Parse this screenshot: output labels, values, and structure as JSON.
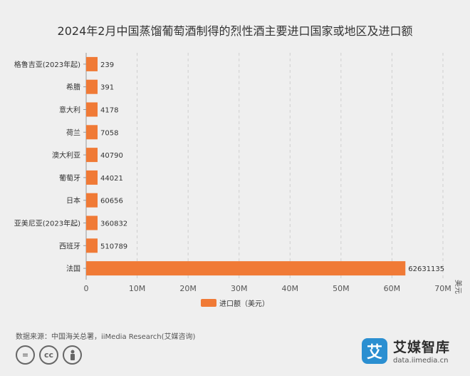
{
  "chart_data": {
    "type": "bar",
    "orientation": "horizontal",
    "title": "2024年2月中国蒸馏葡萄酒制得的烈性酒主要进口国家或地区及进口额",
    "unit_label": "美元",
    "categories": [
      "格鲁吉亚(2023年起)",
      "希腊",
      "意大利",
      "荷兰",
      "澳大利亚",
      "葡萄牙",
      "日本",
      "亚美尼亚(2023年起)",
      "西班牙",
      "法国"
    ],
    "series": [
      {
        "name": "进口额（美元）",
        "color": "#f07a36",
        "values": [
          239,
          391,
          4178,
          7058,
          40790,
          44021,
          60656,
          360832,
          510789,
          62631135
        ]
      }
    ],
    "x_ticks": [
      "0",
      "10M",
      "20M",
      "30M",
      "40M",
      "50M",
      "60M",
      "70M"
    ],
    "xlim": [
      0,
      70000000
    ],
    "grid": "vertical-dashed",
    "legend_position": "bottom"
  },
  "source": "数据来源：中国海关总署，iiMedia Research(艾媒咨询)",
  "brand": {
    "logo_glyph": "艾",
    "name": "艾媒智库",
    "url": "data.iimedia.cn"
  },
  "license_icons": [
    "=",
    "cc",
    "person"
  ]
}
